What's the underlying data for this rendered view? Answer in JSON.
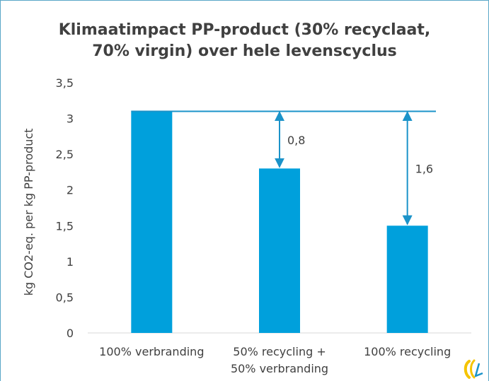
{
  "chart_data": {
    "type": "bar",
    "title_lines": [
      "Klimaatimpact PP-product (30% recyclaat,",
      "70% virgin) over hele levenscyclus"
    ],
    "ylabel": "kg CO2-eq. per kg  PP-product",
    "xlabel": "",
    "ylim": [
      0,
      3.5
    ],
    "yticks": [
      "0",
      "0,5",
      "1",
      "1,5",
      "2",
      "2,5",
      "3",
      "3,5"
    ],
    "categories": [
      [
        "100% verbranding"
      ],
      [
        "50% recycling +",
        "50% verbranding"
      ],
      [
        "100% recycling"
      ]
    ],
    "values": [
      3.1,
      2.3,
      1.5
    ],
    "reference_line": 3.1,
    "annotations": [
      {
        "category_index": 1,
        "label": "0,8",
        "from": 3.1,
        "to": 2.3
      },
      {
        "category_index": 2,
        "label": "1,6",
        "from": 3.1,
        "to": 1.5
      }
    ],
    "bar_color": "#00a0dc",
    "line_color": "#1b93c9",
    "grid": false,
    "legend": "none"
  },
  "logo": {
    "name": "brand-logo-icon",
    "colors": [
      "#f5c400",
      "#1b93c9"
    ]
  }
}
